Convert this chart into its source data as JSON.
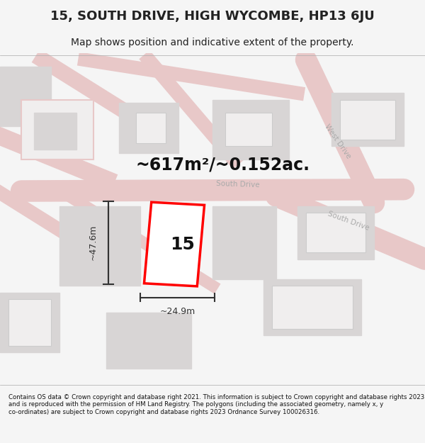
{
  "title": "15, SOUTH DRIVE, HIGH WYCOMBE, HP13 6JU",
  "subtitle": "Map shows position and indicative extent of the property.",
  "area_text": "~617m²/~0.152ac.",
  "property_number": "15",
  "width_label": "~24.9m",
  "height_label": "~47.6m",
  "footer": "Contains OS data © Crown copyright and database right 2021. This information is subject to Crown copyright and database rights 2023 and is reproduced with the permission of HM Land Registry. The polygons (including the associated geometry, namely x, y co-ordinates) are subject to Crown copyright and database rights 2023 Ordnance Survey 100026316.",
  "bg_color": "#f5f5f5",
  "map_bg": "#f0eeee",
  "road_color": "#e8c8c8",
  "building_fill": "#d8d5d5",
  "highlight_fill": "#ffffff",
  "highlight_edge": "#ff0000",
  "title_color": "#222222",
  "footer_color": "#111111",
  "road_label_color": "#aaaaaa",
  "measure_color": "#333333"
}
